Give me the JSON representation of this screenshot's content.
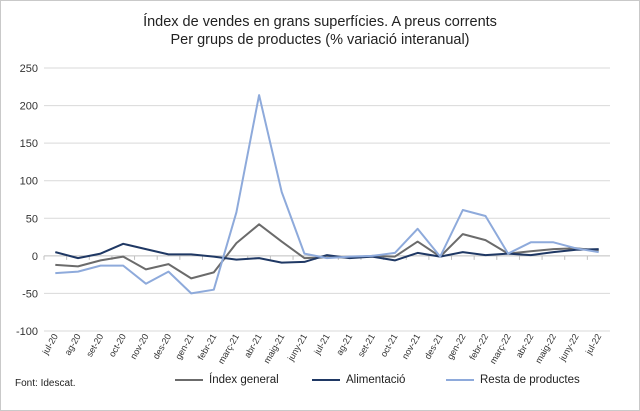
{
  "chart_data": {
    "type": "line",
    "title": [
      "Índex de vendes en grans superfícies. A preus corrents",
      "Per grups de productes (% variació interanual)"
    ],
    "xlabel": "",
    "ylabel": "",
    "ylim": [
      -100,
      250
    ],
    "yticks": [
      -100,
      -50,
      0,
      50,
      100,
      150,
      200,
      250
    ],
    "grid": true,
    "legend_position": "bottom",
    "categories": [
      "jul-20",
      "ag-20",
      "set-20",
      "oct-20",
      "nov-20",
      "des-20",
      "gen-21",
      "febr-21",
      "març-21",
      "abr-21",
      "maig-21",
      "juny-21",
      "jul-21",
      "ag-21",
      "set-21",
      "oct-21",
      "nov-21",
      "des-21",
      "gen-22",
      "febr-22",
      "març-22",
      "abr-22",
      "maig-22",
      "juny-22",
      "jul-22"
    ],
    "series": [
      {
        "name": "Índex general",
        "color": "#6b6b6b",
        "values": [
          -12,
          -14,
          -6,
          -1,
          -18,
          -11,
          -30,
          -22,
          17,
          42,
          19,
          -3,
          -2,
          -2,
          0,
          -1,
          19,
          -1,
          29,
          21,
          3,
          6,
          9,
          10,
          7
        ]
      },
      {
        "name": "Alimentació",
        "color": "#1f3864",
        "values": [
          5,
          -3,
          3,
          16,
          9,
          2,
          2,
          -1,
          -5,
          -3,
          -9,
          -8,
          1,
          -3,
          -1,
          -6,
          4,
          -1,
          5,
          1,
          3,
          1,
          5,
          8,
          9
        ]
      },
      {
        "name": "Resta de productes",
        "color": "#8eaadb",
        "values": [
          -23,
          -21,
          -13,
          -13,
          -37,
          -21,
          -50,
          -45,
          58,
          214,
          85,
          3,
          -3,
          -1,
          0,
          4,
          36,
          -1,
          61,
          53,
          3,
          18,
          18,
          10,
          5
        ]
      }
    ]
  },
  "source": "Font: Idescat."
}
